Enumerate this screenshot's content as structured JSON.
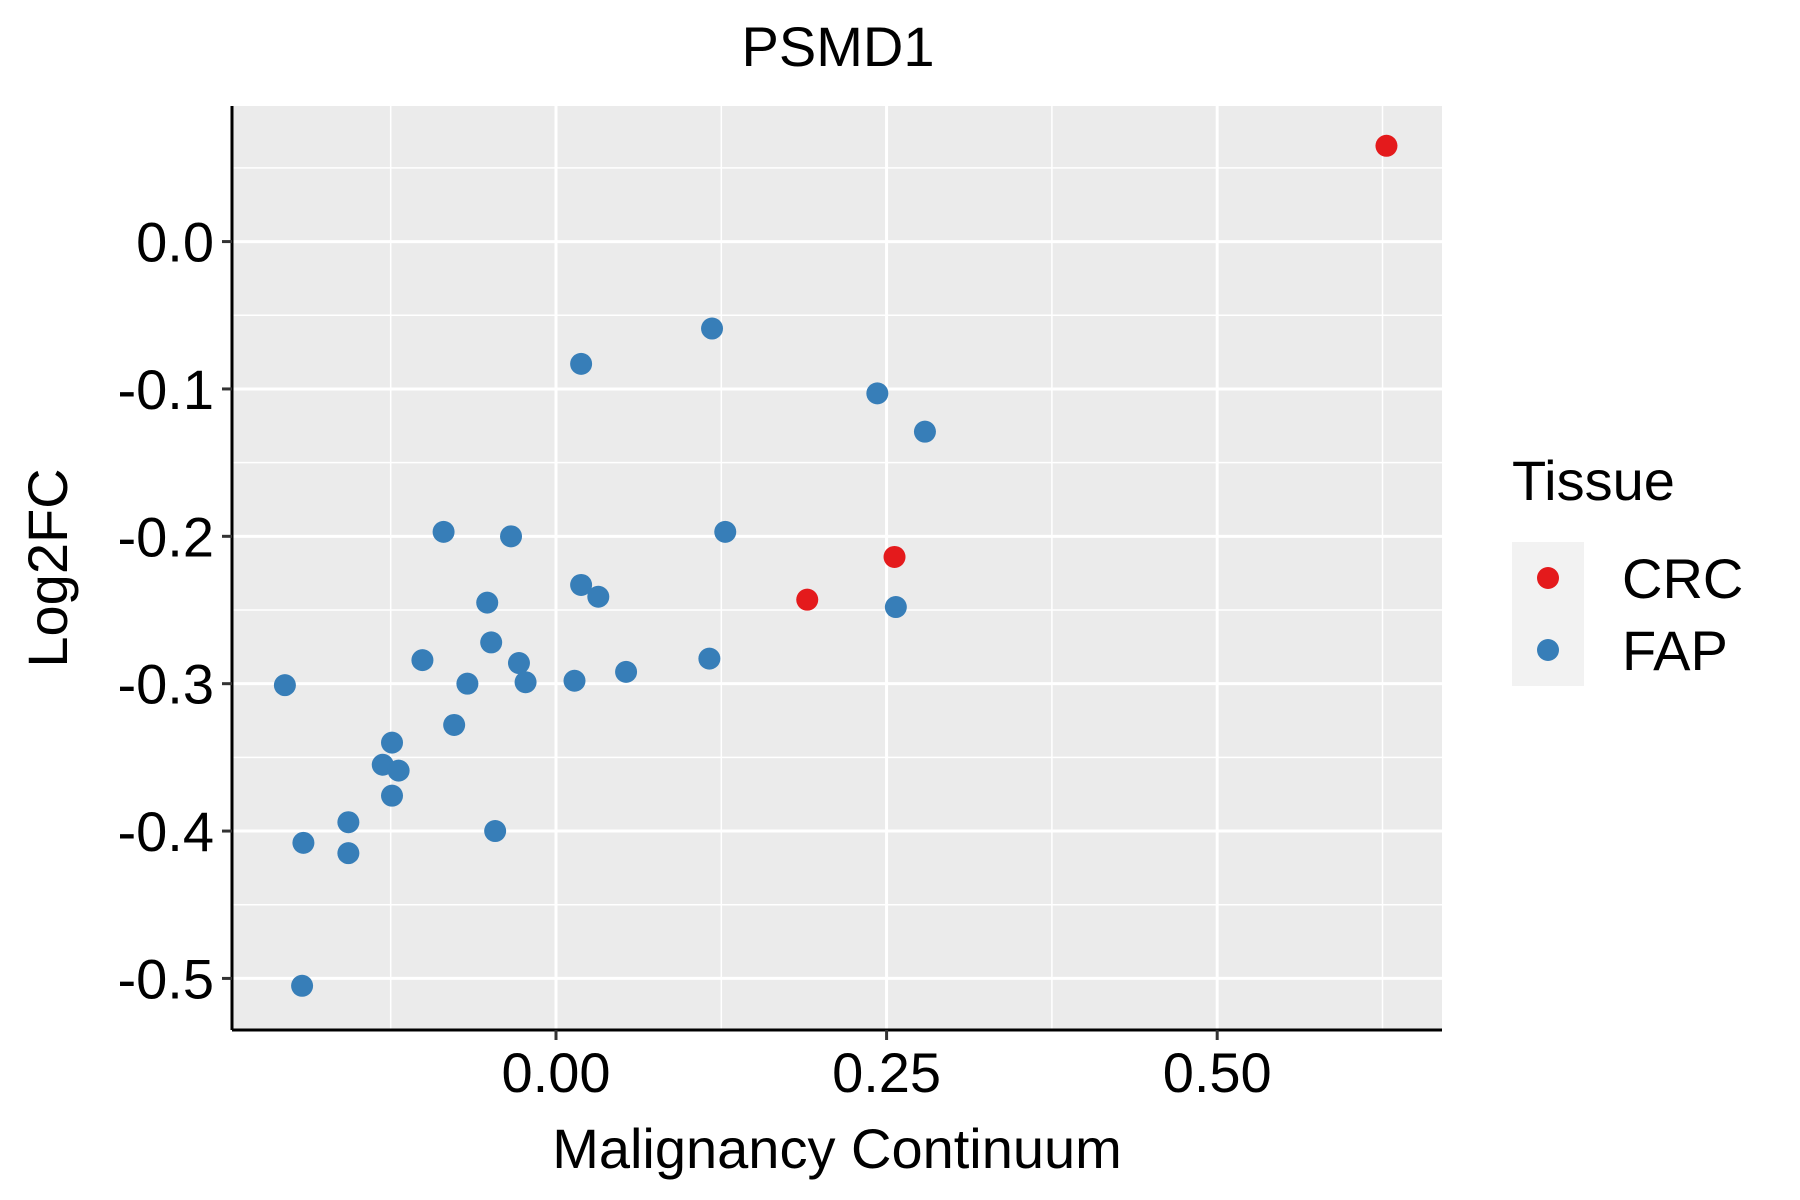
{
  "chart_data": {
    "type": "scatter",
    "title": "PSMD1",
    "xlabel": "Malignancy Continuum",
    "ylabel": "Log2FC",
    "xlim": [
      -0.245,
      0.67
    ],
    "ylim": [
      -0.535,
      0.092
    ],
    "x_ticks": [
      0.0,
      0.25,
      0.5
    ],
    "x_tick_labels": [
      "0.00",
      "0.25",
      "0.50"
    ],
    "y_ticks": [
      0.0,
      -0.1,
      -0.2,
      -0.3,
      -0.4,
      -0.5
    ],
    "y_tick_labels": [
      "0.0",
      "-0.1",
      "-0.2",
      "-0.3",
      "-0.4",
      "-0.5"
    ],
    "grid": true,
    "legend": {
      "title": "Tissue",
      "position": "right",
      "entries": [
        {
          "label": "CRC",
          "color": "#E41A1C"
        },
        {
          "label": "FAP",
          "color": "#377EB8"
        }
      ]
    },
    "series": [
      {
        "name": "CRC",
        "color": "#E41A1C",
        "points": [
          {
            "x": 0.628,
            "y": 0.065
          },
          {
            "x": 0.256,
            "y": -0.214
          },
          {
            "x": 0.19,
            "y": -0.243
          }
        ]
      },
      {
        "name": "FAP",
        "color": "#377EB8",
        "points": [
          {
            "x": 0.118,
            "y": -0.059
          },
          {
            "x": 0.019,
            "y": -0.083
          },
          {
            "x": 0.243,
            "y": -0.103
          },
          {
            "x": 0.279,
            "y": -0.129
          },
          {
            "x": -0.085,
            "y": -0.197
          },
          {
            "x": -0.034,
            "y": -0.2
          },
          {
            "x": 0.128,
            "y": -0.197
          },
          {
            "x": 0.019,
            "y": -0.233
          },
          {
            "x": 0.032,
            "y": -0.241
          },
          {
            "x": -0.052,
            "y": -0.245
          },
          {
            "x": 0.257,
            "y": -0.248
          },
          {
            "x": -0.049,
            "y": -0.272
          },
          {
            "x": -0.101,
            "y": -0.284
          },
          {
            "x": -0.028,
            "y": -0.286
          },
          {
            "x": 0.053,
            "y": -0.292
          },
          {
            "x": 0.116,
            "y": -0.283
          },
          {
            "x": -0.067,
            "y": -0.3
          },
          {
            "x": -0.023,
            "y": -0.299
          },
          {
            "x": 0.014,
            "y": -0.298
          },
          {
            "x": -0.205,
            "y": -0.301
          },
          {
            "x": -0.077,
            "y": -0.328
          },
          {
            "x": -0.124,
            "y": -0.34
          },
          {
            "x": -0.131,
            "y": -0.355
          },
          {
            "x": -0.119,
            "y": -0.359
          },
          {
            "x": -0.124,
            "y": -0.376
          },
          {
            "x": -0.157,
            "y": -0.394
          },
          {
            "x": -0.046,
            "y": -0.4
          },
          {
            "x": -0.191,
            "y": -0.408
          },
          {
            "x": -0.157,
            "y": -0.415
          },
          {
            "x": -0.192,
            "y": -0.505
          }
        ]
      }
    ]
  }
}
